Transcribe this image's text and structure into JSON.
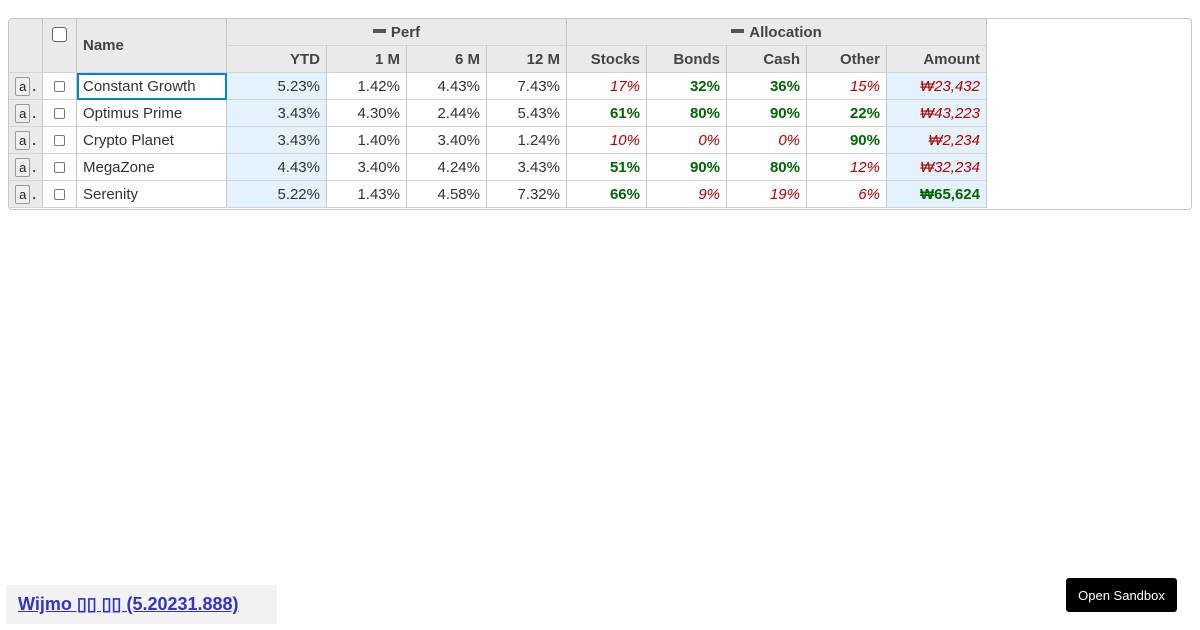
{
  "grid": {
    "headers": {
      "name": "Name",
      "perf_group": "Perf",
      "allocation_group": "Allocation",
      "ytd": "YTD",
      "m1": "1 M",
      "m6": "6 M",
      "m12": "12 M",
      "stocks": "Stocks",
      "bonds": "Bonds",
      "cash": "Cash",
      "other": "Other",
      "amount": "Amount"
    },
    "row_button_label": "a",
    "row_button_suffix": ".",
    "rows": [
      {
        "name": "Constant Growth",
        "ytd": "5.23%",
        "m1": "1.42%",
        "m6": "4.43%",
        "m12": "7.43%",
        "stocks": "17%",
        "bonds": "32%",
        "cash": "36%",
        "other": "15%",
        "amount": "₩23,432"
      },
      {
        "name": "Optimus Prime",
        "ytd": "3.43%",
        "m1": "4.30%",
        "m6": "2.44%",
        "m12": "5.43%",
        "stocks": "61%",
        "bonds": "80%",
        "cash": "90%",
        "other": "22%",
        "amount": "₩43,223"
      },
      {
        "name": "Crypto Planet",
        "ytd": "3.43%",
        "m1": "1.40%",
        "m6": "3.40%",
        "m12": "1.24%",
        "stocks": "10%",
        "bonds": "0%",
        "cash": "0%",
        "other": "90%",
        "amount": "₩2,234"
      },
      {
        "name": "MegaZone",
        "ytd": "4.43%",
        "m1": "3.40%",
        "m6": "4.24%",
        "m12": "3.43%",
        "stocks": "51%",
        "bonds": "90%",
        "cash": "80%",
        "other": "12%",
        "amount": "₩32,234"
      },
      {
        "name": "Serenity",
        "ytd": "5.22%",
        "m1": "1.43%",
        "m6": "4.58%",
        "m12": "7.32%",
        "stocks": "66%",
        "bonds": "9%",
        "cash": "19%",
        "other": "6%",
        "amount": "₩65,624"
      }
    ],
    "styles": {
      "stocks": [
        "neg",
        "pos",
        "neg",
        "pos",
        "pos"
      ],
      "bonds": [
        "pos",
        "pos",
        "neg",
        "pos",
        "neg"
      ],
      "cash": [
        "pos",
        "pos",
        "neg",
        "pos",
        "neg"
      ],
      "other": [
        "neg",
        "pos",
        "pos",
        "neg",
        "neg"
      ],
      "amount": [
        "neg",
        "neg",
        "neg",
        "neg",
        "pos"
      ]
    }
  },
  "footer": {
    "link_text": "Wijmo ▯▯ ▯▯ (5.20231.888)"
  },
  "sandbox_button": "Open Sandbox",
  "colors": {
    "negative": "#b00000",
    "positive": "#006400",
    "selection": "#e3f2fd",
    "focus": "#0085c7"
  }
}
